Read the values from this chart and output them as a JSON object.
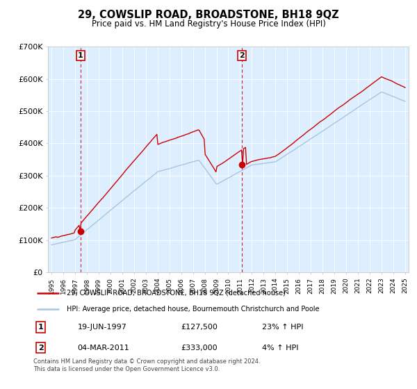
{
  "title": "29, COWSLIP ROAD, BROADSTONE, BH18 9QZ",
  "subtitle": "Price paid vs. HM Land Registry's House Price Index (HPI)",
  "legend_line1": "29, COWSLIP ROAD, BROADSTONE, BH18 9QZ (detached house)",
  "legend_line2": "HPI: Average price, detached house, Bournemouth Christchurch and Poole",
  "transaction1_date": "19-JUN-1997",
  "transaction1_price": "£127,500",
  "transaction1_hpi": "23% ↑ HPI",
  "transaction2_date": "04-MAR-2011",
  "transaction2_price": "£333,000",
  "transaction2_hpi": "4% ↑ HPI",
  "footnote": "Contains HM Land Registry data © Crown copyright and database right 2024.\nThis data is licensed under the Open Government Licence v3.0.",
  "hpi_color": "#aac4e0",
  "price_color": "#cc0000",
  "bg_color": "#ddeeff",
  "marker_color": "#cc0000",
  "dashed_color": "#cc0000",
  "ylim": [
    0,
    700000
  ],
  "yticks": [
    0,
    100000,
    200000,
    300000,
    400000,
    500000,
    600000,
    700000
  ],
  "ytick_labels": [
    "£0",
    "£100K",
    "£200K",
    "£300K",
    "£400K",
    "£500K",
    "£600K",
    "£700K"
  ]
}
